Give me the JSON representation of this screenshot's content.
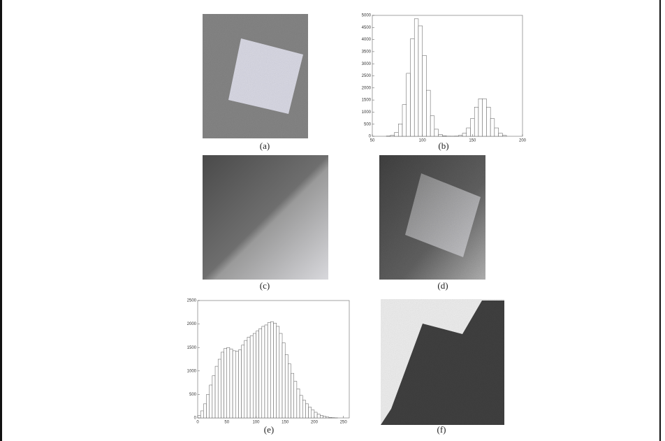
{
  "panels": [
    {
      "label": "(a)"
    },
    {
      "label": "(b)"
    },
    {
      "label": "(c)"
    },
    {
      "label": "(d)"
    },
    {
      "label": "(e)"
    },
    {
      "label": "(f)"
    }
  ],
  "chart_data": [
    {
      "type": "histogram",
      "bins": [
        64,
        68,
        72,
        76,
        80,
        84,
        88,
        92,
        96,
        100,
        104,
        108,
        112,
        116,
        120,
        124,
        128,
        132,
        136,
        140,
        144,
        148,
        152,
        156,
        160,
        164,
        168,
        172,
        176,
        180,
        184
      ],
      "values": [
        10,
        37,
        155,
        513,
        1309,
        2603,
        4031,
        4860,
        4567,
        3342,
        1904,
        845,
        292,
        78,
        20,
        5,
        3,
        8,
        36,
        127,
        346,
        732,
        1207,
        1550,
        1550,
        1207,
        732,
        346,
        127,
        36
      ],
      "xlim": [
        50,
        200
      ],
      "ylim": [
        0,
        5000
      ],
      "xticks": [
        50,
        100,
        150,
        200
      ],
      "yticks": [
        0,
        500,
        1000,
        1500,
        2000,
        2500,
        3000,
        3500,
        4000,
        4500,
        5000
      ]
    },
    {
      "type": "histogram",
      "bins": [
        0,
        5,
        10,
        15,
        20,
        25,
        30,
        35,
        40,
        45,
        50,
        55,
        60,
        65,
        70,
        75,
        80,
        85,
        90,
        95,
        100,
        105,
        110,
        115,
        120,
        125,
        130,
        135,
        140,
        145,
        150,
        155,
        160,
        165,
        170,
        175,
        180,
        185,
        190,
        195,
        200,
        205,
        210,
        215,
        220,
        225,
        230,
        235,
        240,
        245,
        250
      ],
      "values": [
        50,
        150,
        300,
        500,
        700,
        900,
        1100,
        1250,
        1400,
        1480,
        1500,
        1470,
        1430,
        1420,
        1450,
        1550,
        1650,
        1720,
        1750,
        1800,
        1850,
        1900,
        1950,
        1980,
        2030,
        2050,
        2020,
        1950,
        1800,
        1600,
        1350,
        1150,
        950,
        780,
        620,
        480,
        380,
        300,
        230,
        170,
        120,
        80,
        55,
        35,
        20,
        10,
        5,
        2,
        0,
        0
      ],
      "xlim": [
        0,
        260
      ],
      "ylim": [
        0,
        2500
      ],
      "xticks": [
        0,
        50,
        100,
        150,
        200,
        250
      ],
      "yticks": [
        0,
        500,
        1000,
        1500,
        2000,
        2500
      ]
    }
  ]
}
